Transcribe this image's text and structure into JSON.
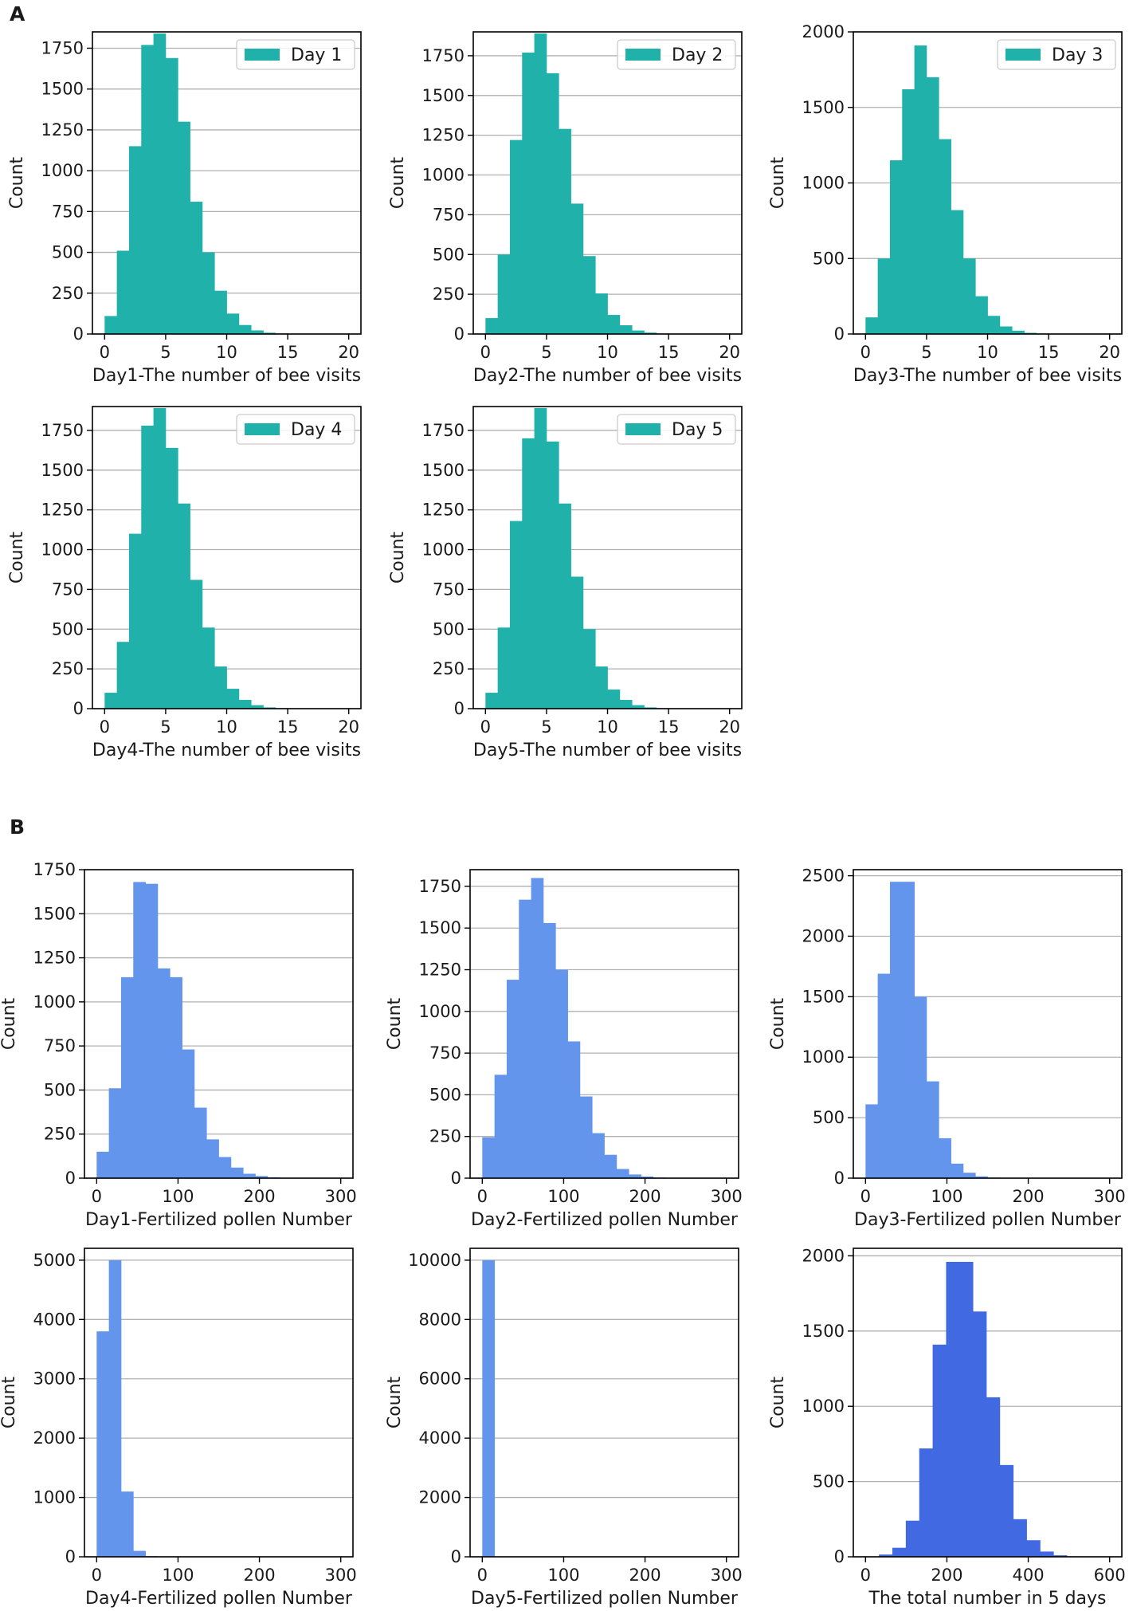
{
  "panels": [
    "A",
    "B"
  ],
  "colors": {
    "teal": "#20b2aa",
    "cornflower": "#6495ed",
    "royal": "#4169e1"
  },
  "chart_data": [
    {
      "type": "bar",
      "panel": "A",
      "title": "",
      "xlabel": "Day1-The number of bee visits",
      "ylabel": "Count",
      "legend": "Day 1",
      "color": "#20b2aa",
      "bin_edges": [
        0,
        1,
        2,
        3,
        4,
        5,
        6,
        7,
        8,
        9,
        10,
        11,
        12,
        13,
        14,
        15,
        16,
        17,
        18,
        19,
        20
      ],
      "values": [
        110,
        510,
        1150,
        1770,
        1840,
        1690,
        1300,
        810,
        500,
        265,
        125,
        55,
        22,
        8,
        3,
        1,
        0,
        0,
        0,
        0
      ],
      "xlim": [
        -1,
        21
      ],
      "ylim": [
        0,
        1850
      ],
      "xticks": [
        0,
        5,
        10,
        15,
        20
      ],
      "yticks": [
        0,
        250,
        500,
        750,
        1000,
        1250,
        1500,
        1750
      ]
    },
    {
      "type": "bar",
      "panel": "A",
      "title": "",
      "xlabel": "Day2-The number of bee visits",
      "ylabel": "Count",
      "legend": "Day 2",
      "color": "#20b2aa",
      "bin_edges": [
        0,
        1,
        2,
        3,
        4,
        5,
        6,
        7,
        8,
        9,
        10,
        11,
        12,
        13,
        14,
        15,
        16,
        17,
        18,
        19,
        20
      ],
      "values": [
        100,
        500,
        1220,
        1770,
        1890,
        1640,
        1290,
        820,
        490,
        255,
        120,
        55,
        22,
        9,
        3,
        1,
        0,
        0,
        0,
        0
      ],
      "xlim": [
        -1,
        21
      ],
      "ylim": [
        0,
        1900
      ],
      "xticks": [
        0,
        5,
        10,
        15,
        20
      ],
      "yticks": [
        0,
        250,
        500,
        750,
        1000,
        1250,
        1500,
        1750
      ]
    },
    {
      "type": "bar",
      "panel": "A",
      "title": "",
      "xlabel": "Day3-The number of bee visits",
      "ylabel": "Count",
      "legend": "Day 3",
      "color": "#20b2aa",
      "bin_edges": [
        0,
        1,
        2,
        3,
        4,
        5,
        6,
        7,
        8,
        9,
        10,
        11,
        12,
        13,
        14,
        15,
        16,
        17,
        18,
        19,
        20
      ],
      "values": [
        110,
        500,
        1150,
        1620,
        1910,
        1700,
        1290,
        820,
        500,
        250,
        120,
        50,
        22,
        8,
        3,
        1,
        0,
        0,
        0,
        0
      ],
      "xlim": [
        -1,
        21
      ],
      "ylim": [
        0,
        2000
      ],
      "xticks": [
        0,
        5,
        10,
        15,
        20
      ],
      "yticks": [
        0,
        500,
        1000,
        1500,
        2000
      ]
    },
    {
      "type": "bar",
      "panel": "A",
      "title": "",
      "xlabel": "Day4-The number of bee visits",
      "ylabel": "Count",
      "legend": "Day 4",
      "color": "#20b2aa",
      "bin_edges": [
        0,
        1,
        2,
        3,
        4,
        5,
        6,
        7,
        8,
        9,
        10,
        11,
        12,
        13,
        14,
        15,
        16,
        17,
        18,
        19,
        20
      ],
      "values": [
        100,
        420,
        1100,
        1780,
        1890,
        1640,
        1290,
        810,
        510,
        265,
        125,
        55,
        22,
        8,
        3,
        1,
        0,
        0,
        0,
        0
      ],
      "xlim": [
        -1,
        21
      ],
      "ylim": [
        0,
        1900
      ],
      "xticks": [
        0,
        5,
        10,
        15,
        20
      ],
      "yticks": [
        0,
        250,
        500,
        750,
        1000,
        1250,
        1500,
        1750
      ]
    },
    {
      "type": "bar",
      "panel": "A",
      "title": "",
      "xlabel": "Day5-The number of bee visits",
      "ylabel": "Count",
      "legend": "Day 5",
      "color": "#20b2aa",
      "bin_edges": [
        0,
        1,
        2,
        3,
        4,
        5,
        6,
        7,
        8,
        9,
        10,
        11,
        12,
        13,
        14,
        15,
        16,
        17,
        18,
        19,
        20
      ],
      "values": [
        100,
        510,
        1180,
        1700,
        1890,
        1680,
        1290,
        830,
        500,
        265,
        120,
        55,
        22,
        8,
        3,
        1,
        0,
        0,
        0,
        0
      ],
      "xlim": [
        -1,
        21
      ],
      "ylim": [
        0,
        1900
      ],
      "xticks": [
        0,
        5,
        10,
        15,
        20
      ],
      "yticks": [
        0,
        250,
        500,
        750,
        1000,
        1250,
        1500,
        1750
      ]
    },
    {
      "type": "bar",
      "panel": "B",
      "title": "",
      "xlabel": "Day1-Fertilized pollen Number",
      "ylabel": "Count",
      "color": "#6495ed",
      "bin_edges": [
        0,
        15,
        30,
        45,
        60,
        75,
        90,
        105,
        120,
        135,
        150,
        165,
        180,
        195,
        210,
        225,
        240,
        255,
        270,
        285,
        300
      ],
      "values": [
        150,
        510,
        1140,
        1680,
        1670,
        1190,
        1140,
        730,
        400,
        220,
        120,
        60,
        25,
        12,
        5,
        2,
        1,
        0,
        0,
        0
      ],
      "xlim": [
        -15,
        315
      ],
      "ylim": [
        0,
        1750
      ],
      "xticks": [
        0,
        100,
        200,
        300
      ],
      "yticks": [
        0,
        250,
        500,
        750,
        1000,
        1250,
        1500,
        1750
      ]
    },
    {
      "type": "bar",
      "panel": "B",
      "title": "",
      "xlabel": "Day2-Fertilized pollen Number",
      "ylabel": "Count",
      "color": "#6495ed",
      "bin_edges": [
        0,
        15,
        30,
        45,
        60,
        75,
        90,
        105,
        120,
        135,
        150,
        165,
        180,
        195,
        210,
        225,
        240,
        255,
        270,
        285,
        300
      ],
      "values": [
        245,
        620,
        1190,
        1670,
        1800,
        1530,
        1250,
        820,
        490,
        270,
        140,
        55,
        22,
        10,
        4,
        2,
        1,
        0,
        0,
        0
      ],
      "xlim": [
        -15,
        315
      ],
      "ylim": [
        0,
        1850
      ],
      "xticks": [
        0,
        100,
        200,
        300
      ],
      "yticks": [
        0,
        250,
        500,
        750,
        1000,
        1250,
        1500,
        1750
      ]
    },
    {
      "type": "bar",
      "panel": "B",
      "title": "",
      "xlabel": "Day3-Fertilized pollen Number",
      "ylabel": "Count",
      "color": "#6495ed",
      "bin_edges": [
        0,
        15,
        30,
        45,
        60,
        75,
        90,
        105,
        120,
        135,
        150,
        165,
        180,
        195,
        210,
        225,
        240,
        255,
        270,
        285,
        300
      ],
      "values": [
        610,
        1690,
        2450,
        2450,
        1500,
        800,
        330,
        120,
        45,
        15,
        5,
        2,
        1,
        0,
        0,
        0,
        0,
        0,
        0,
        0
      ],
      "xlim": [
        -15,
        315
      ],
      "ylim": [
        0,
        2550
      ],
      "xticks": [
        0,
        100,
        200,
        300
      ],
      "yticks": [
        0,
        500,
        1000,
        1500,
        2000,
        2500
      ]
    },
    {
      "type": "bar",
      "panel": "B",
      "title": "",
      "xlabel": "Day4-Fertilized pollen Number",
      "ylabel": "Count",
      "color": "#6495ed",
      "bin_edges": [
        0,
        15,
        30,
        45,
        60,
        75,
        90,
        105,
        120,
        135,
        150,
        165,
        180,
        195,
        210,
        225,
        240,
        255,
        270,
        285,
        300
      ],
      "values": [
        3800,
        5000,
        1100,
        100,
        10,
        2,
        0,
        0,
        0,
        0,
        0,
        0,
        0,
        0,
        0,
        0,
        0,
        0,
        0,
        0
      ],
      "xlim": [
        -15,
        315
      ],
      "ylim": [
        0,
        5200
      ],
      "xticks": [
        0,
        100,
        200,
        300
      ],
      "yticks": [
        0,
        1000,
        2000,
        3000,
        4000,
        5000
      ]
    },
    {
      "type": "bar",
      "panel": "B",
      "title": "",
      "xlabel": "Day5-Fertilized pollen Number",
      "ylabel": "Count",
      "color": "#6495ed",
      "bin_edges": [
        0,
        15,
        30,
        45,
        60,
        75,
        90,
        105,
        120,
        135,
        150,
        165,
        180,
        195,
        210,
        225,
        240,
        255,
        270,
        285,
        300
      ],
      "values": [
        10000,
        0,
        0,
        0,
        0,
        0,
        0,
        0,
        0,
        0,
        0,
        0,
        0,
        0,
        0,
        0,
        0,
        0,
        0,
        0
      ],
      "xlim": [
        -15,
        315
      ],
      "ylim": [
        0,
        10400
      ],
      "xticks": [
        0,
        100,
        200,
        300
      ],
      "yticks": [
        0,
        2000,
        4000,
        6000,
        8000,
        10000
      ]
    },
    {
      "type": "bar",
      "panel": "B",
      "title": "",
      "xlabel": "The total number in 5 days",
      "ylabel": "Count",
      "color": "#4169e1",
      "bin_edges": [
        0,
        33,
        66,
        99,
        132,
        165,
        198,
        231,
        264,
        297,
        330,
        363,
        396,
        429,
        462,
        495,
        528,
        561,
        594
      ],
      "values": [
        2,
        15,
        60,
        240,
        720,
        1410,
        1960,
        1960,
        1630,
        1060,
        610,
        250,
        110,
        35,
        10,
        3,
        1,
        0
      ],
      "xlim": [
        -30,
        630
      ],
      "ylim": [
        0,
        2050
      ],
      "xticks": [
        0,
        200,
        400,
        600
      ],
      "yticks": [
        0,
        500,
        1000,
        1500,
        2000
      ]
    }
  ]
}
